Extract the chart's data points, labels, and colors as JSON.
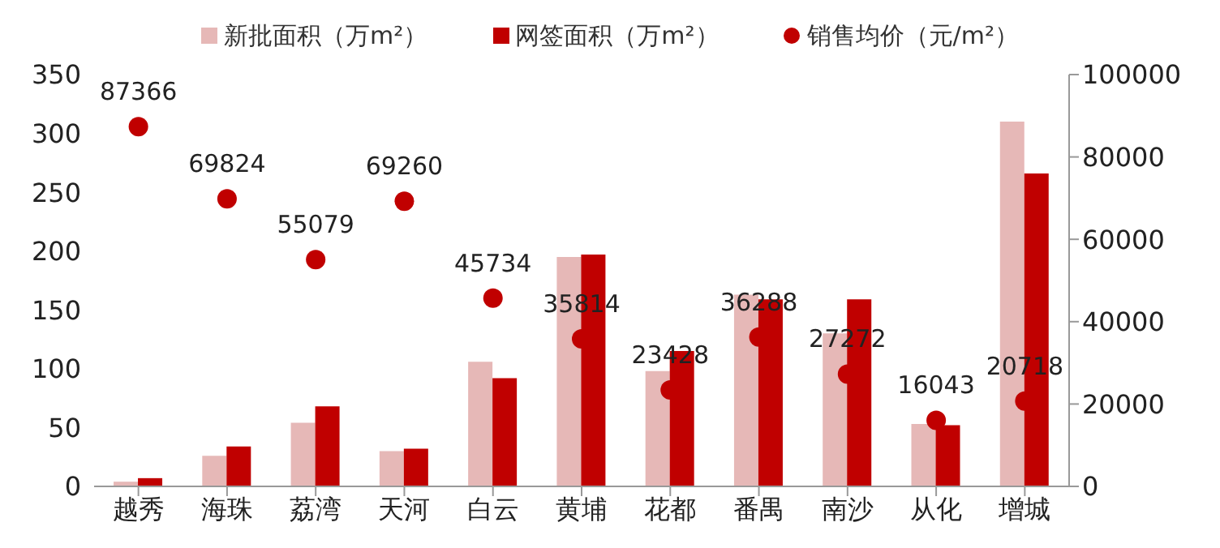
{
  "chart_data": {
    "type": "bar",
    "categories": [
      "越秀",
      "海珠",
      "荔湾",
      "天河",
      "白云",
      "黄埔",
      "花都",
      "番禺",
      "南沙",
      "从化",
      "增城"
    ],
    "series": [
      {
        "name": "新批面积（万m²）",
        "color": "#e6b8b7",
        "values": [
          4,
          26,
          54,
          30,
          106,
          195,
          98,
          163,
          130,
          53,
          310
        ]
      },
      {
        "name": "网签面积（万m²）",
        "color": "#c00000",
        "values": [
          7,
          34,
          68,
          32,
          92,
          197,
          115,
          159,
          159,
          52,
          266
        ]
      },
      {
        "name": "销售均价（元/m²）",
        "type": "scatter",
        "axis": "y2",
        "color": "#c00000",
        "values": [
          87366,
          69824,
          55079,
          69260,
          45734,
          35814,
          23428,
          36288,
          27272,
          16043,
          20718
        ],
        "value_labels": [
          "87366",
          "69824",
          "55079",
          "69260",
          "45734",
          "35814",
          "23428",
          "36288",
          "27272",
          "16043",
          "20718"
        ]
      }
    ],
    "ylim": [
      0,
      350
    ],
    "yticks": [
      0,
      50,
      100,
      150,
      200,
      250,
      300,
      350
    ],
    "y2lim": [
      0,
      100000
    ],
    "y2ticks": [
      0,
      20000,
      40000,
      60000,
      80000,
      100000
    ],
    "grid": false,
    "legend": "top",
    "marker": "circle"
  }
}
